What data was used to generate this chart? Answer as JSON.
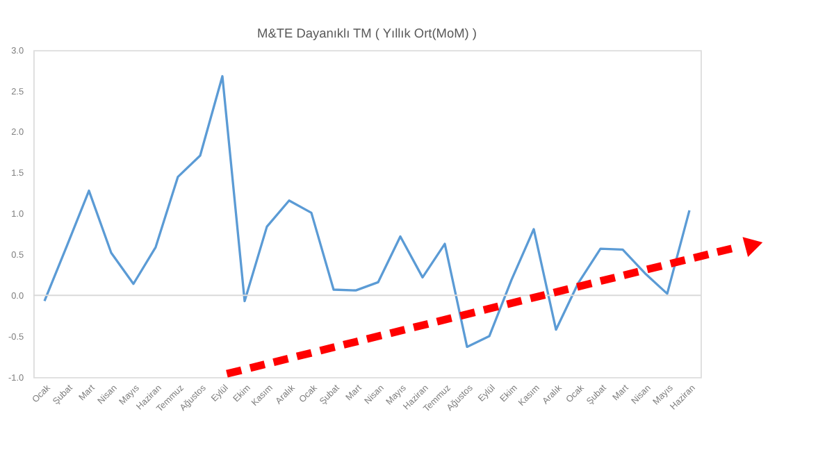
{
  "chart_data": {
    "type": "line",
    "title": "M&TE Dayanıklı TM ( Yıllık Ort(MoM) )",
    "categories": [
      "Ocak",
      "Şubat",
      "Mart",
      "Nisan",
      "Mayıs",
      "Haziran",
      "Temmuz",
      "Ağustos",
      "Eylül",
      "Ekim",
      "Kasım",
      "Aralık",
      "Ocak",
      "Şubat",
      "Mart",
      "Nisan",
      "Mayıs",
      "Haziran",
      "Temmuz",
      "Ağustos",
      "Eylül",
      "Ekim",
      "Kasım",
      "Aralık",
      "Ocak",
      "Şubat",
      "Mart",
      "Nisan",
      "Mayıs",
      "Haziran"
    ],
    "series": [
      {
        "color": "#5b9bd5",
        "values": [
          -0.07,
          0.6,
          1.28,
          0.52,
          0.14,
          0.59,
          1.45,
          1.71,
          2.68,
          -0.07,
          0.84,
          1.16,
          1.01,
          0.07,
          0.06,
          0.16,
          0.72,
          0.22,
          0.63,
          -0.63,
          -0.5,
          0.19,
          0.81,
          -0.42,
          0.15,
          0.57,
          0.56,
          0.27,
          0.02,
          1.04
        ]
      }
    ],
    "ylim": [
      -1.0,
      3.0
    ],
    "yticks": [
      {
        "value": -1.0,
        "label": "-1.0"
      },
      {
        "value": -0.5,
        "label": "-0.5"
      },
      {
        "value": 0,
        "label": "0.0"
      },
      {
        "value": 0.5,
        "label": "0.5"
      },
      {
        "value": 1.0,
        "label": "1.0"
      },
      {
        "value": 1.5,
        "label": "1.5"
      },
      {
        "value": 2.0,
        "label": "2.0"
      },
      {
        "value": 2.5,
        "label": "2.5"
      },
      {
        "value": 3.0,
        "label": "3.0"
      }
    ],
    "ref_lines": [
      {
        "axis": "y",
        "value": 0,
        "color": "#d9d9d9"
      }
    ],
    "grid": false,
    "marker": "none",
    "line_style": "solid"
  }
}
